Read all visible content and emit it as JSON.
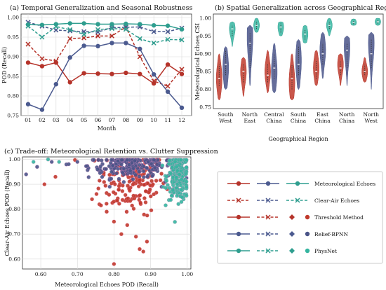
{
  "colors": {
    "threshold": "#b5332a",
    "relief": "#4b5a8f",
    "physnet": "#2f9e8f",
    "threshold_fill": "#c0392b",
    "relief_fill": "#4a5488",
    "physnet_fill": "#35b5a0",
    "grid": "#d9d9d9"
  },
  "legend": {
    "rows": [
      {
        "label": "Meteorological Echoes",
        "kind": "met"
      },
      {
        "label": "Clear-Air Echoes",
        "kind": "clear"
      },
      {
        "label": "Threshold Method",
        "kind": "threshold"
      },
      {
        "label": "Relief-BPNN",
        "kind": "relief"
      },
      {
        "label": "PhysNet",
        "kind": "physnet"
      }
    ]
  },
  "chart_data": [
    {
      "type": "line",
      "title": "(a) Temporal Generalization and Seasonal Robustness",
      "xlabel": "Month",
      "ylabel": "POD (Recall)",
      "categories": [
        "01",
        "02",
        "03",
        "04",
        "05",
        "06",
        "07",
        "08",
        "09",
        "10",
        "11",
        "12"
      ],
      "ylim": [
        0.75,
        1.0
      ],
      "yticks": [
        "0.75",
        "0.80",
        "0.85",
        "0.90",
        "0.95",
        "1.00"
      ],
      "grid": true,
      "series": [
        {
          "method": "threshold",
          "echo": "met",
          "values": [
            0.885,
            0.876,
            0.885,
            0.835,
            0.858,
            0.857,
            0.856,
            0.859,
            0.856,
            0.832,
            0.88,
            0.856
          ]
        },
        {
          "method": "threshold",
          "echo": "clear",
          "values": [
            0.932,
            0.895,
            0.889,
            0.946,
            0.948,
            0.953,
            0.953,
            0.976,
            0.9,
            0.838,
            0.825,
            0.868
          ]
        },
        {
          "method": "relief",
          "echo": "met",
          "values": [
            0.779,
            0.765,
            0.83,
            0.898,
            0.928,
            0.927,
            0.935,
            0.935,
            0.92,
            0.855,
            0.811,
            0.77
          ]
        },
        {
          "method": "relief",
          "echo": "clear",
          "values": [
            0.988,
            0.978,
            0.968,
            0.966,
            0.964,
            0.963,
            0.974,
            0.975,
            0.976,
            0.964,
            0.964,
            0.973
          ]
        },
        {
          "method": "physnet",
          "echo": "met",
          "values": [
            0.982,
            0.981,
            0.983,
            0.985,
            0.985,
            0.983,
            0.983,
            0.984,
            0.983,
            0.98,
            0.979,
            0.97
          ]
        },
        {
          "method": "physnet",
          "echo": "clear",
          "values": [
            0.978,
            0.95,
            0.977,
            0.969,
            0.957,
            0.969,
            0.972,
            0.97,
            0.946,
            0.935,
            0.944,
            0.943
          ]
        }
      ]
    },
    {
      "type": "violin",
      "title": "(b) Spatial Generalization across Geographical Regions",
      "xlabel": "Geographical Region",
      "ylabel": "Meteorological Echoes CSI",
      "categories": [
        "South West",
        "North East",
        "Central China",
        "South China",
        "East China",
        "North China",
        "North West"
      ],
      "ylim": [
        0.75,
        1.0
      ],
      "yticks": [
        "0.75",
        "0.80",
        "0.85",
        "0.90",
        "0.95",
        "1.00"
      ],
      "series": [
        {
          "method": "threshold",
          "stats": [
            {
              "min": 0.77,
              "q1": 0.81,
              "median": 0.83,
              "q3": 0.87,
              "max": 0.9,
              "mode": 0.83
            },
            {
              "min": 0.78,
              "q1": 0.82,
              "median": 0.85,
              "q3": 0.87,
              "max": 0.89,
              "mode": 0.85
            },
            {
              "min": 0.79,
              "q1": 0.82,
              "median": 0.84,
              "q3": 0.87,
              "max": 0.91,
              "mode": 0.85
            },
            {
              "min": 0.77,
              "q1": 0.8,
              "median": 0.83,
              "q3": 0.87,
              "max": 0.9,
              "mode": 0.82
            },
            {
              "min": 0.81,
              "q1": 0.83,
              "median": 0.85,
              "q3": 0.88,
              "max": 0.91,
              "mode": 0.86
            },
            {
              "min": 0.81,
              "q1": 0.84,
              "median": 0.86,
              "q3": 0.88,
              "max": 0.9,
              "mode": 0.87
            },
            {
              "min": 0.82,
              "q1": 0.84,
              "median": 0.85,
              "q3": 0.87,
              "max": 0.89,
              "mode": 0.85
            }
          ]
        },
        {
          "method": "relief",
          "stats": [
            {
              "min": 0.8,
              "q1": 0.84,
              "median": 0.87,
              "q3": 0.91,
              "max": 0.92,
              "mode": 0.86
            },
            {
              "min": 0.81,
              "q1": 0.86,
              "median": 0.93,
              "q3": 0.96,
              "max": 0.98,
              "mode": 0.95
            },
            {
              "min": 0.79,
              "q1": 0.83,
              "median": 0.86,
              "q3": 0.9,
              "max": 0.93,
              "mode": 0.85
            },
            {
              "min": 0.8,
              "q1": 0.84,
              "median": 0.87,
              "q3": 0.92,
              "max": 0.94,
              "mode": 0.88
            },
            {
              "min": 0.83,
              "q1": 0.87,
              "median": 0.9,
              "q3": 0.93,
              "max": 0.96,
              "mode": 0.91
            },
            {
              "min": 0.81,
              "q1": 0.86,
              "median": 0.91,
              "q3": 0.93,
              "max": 0.95,
              "mode": 0.92
            },
            {
              "min": 0.8,
              "q1": 0.86,
              "median": 0.9,
              "q3": 0.94,
              "max": 0.96,
              "mode": 0.93
            }
          ]
        },
        {
          "method": "physnet",
          "stats": [
            {
              "min": 0.92,
              "q1": 0.95,
              "median": 0.97,
              "q3": 0.98,
              "max": 0.99,
              "mode": 0.97
            },
            {
              "min": 0.96,
              "q1": 0.97,
              "median": 0.98,
              "q3": 0.99,
              "max": 1.0,
              "mode": 0.98
            },
            {
              "min": 0.95,
              "q1": 0.96,
              "median": 0.975,
              "q3": 0.985,
              "max": 0.99,
              "mode": 0.975
            },
            {
              "min": 0.93,
              "q1": 0.94,
              "median": 0.955,
              "q3": 0.97,
              "max": 0.98,
              "mode": 0.955
            },
            {
              "min": 0.95,
              "q1": 0.97,
              "median": 0.98,
              "q3": 0.99,
              "max": 1.0,
              "mode": 0.98
            },
            {
              "min": 0.98,
              "q1": 0.983,
              "median": 0.988,
              "q3": 0.993,
              "max": 0.998,
              "mode": 0.988
            },
            {
              "min": 0.98,
              "q1": 0.985,
              "median": 0.99,
              "q3": 0.995,
              "max": 1.0,
              "mode": 0.99
            }
          ]
        }
      ]
    },
    {
      "type": "scatter",
      "title": "(c) Trade-off: Meteorological Retention vs. Clutter Suppression",
      "xlabel": "Meteorological Echoes POD (Recall)",
      "ylabel": "Clear-Air Echoes POD (Recall)",
      "xlim": [
        0.55,
        1.01
      ],
      "ylim": [
        0.56,
        1.01
      ],
      "xticks": [
        "0.60",
        "0.70",
        "0.80",
        "0.90",
        "1.00"
      ],
      "yticks": [
        "0.60",
        "0.70",
        "0.80",
        "0.90",
        "1.00"
      ],
      "grid": true,
      "series": [
        {
          "method": "threshold",
          "center": [
            0.85,
            0.92
          ],
          "spread": [
            0.045,
            0.07
          ],
          "count": 180,
          "points": [
            [
              0.8,
              0.58
            ],
            [
              0.78,
              0.79
            ],
            [
              0.8,
              0.75
            ],
            [
              0.87,
              0.64
            ],
            [
              0.88,
              0.63
            ],
            [
              0.76,
              0.82
            ],
            [
              0.74,
              0.84
            ],
            [
              0.61,
              0.9
            ],
            [
              0.64,
              0.93
            ],
            [
              0.89,
              0.67
            ],
            [
              0.82,
              0.7
            ],
            [
              0.86,
              0.69
            ]
          ]
        },
        {
          "method": "relief",
          "center": [
            0.85,
            0.975
          ],
          "spread": [
            0.06,
            0.025
          ],
          "count": 220,
          "points": [
            [
              0.56,
              0.94
            ],
            [
              0.59,
              0.97
            ],
            [
              0.63,
              0.99
            ],
            [
              0.67,
              0.98
            ],
            [
              0.7,
              0.99
            ],
            [
              0.93,
              0.89
            ],
            [
              0.94,
              0.91
            ],
            [
              0.96,
              0.88
            ]
          ]
        },
        {
          "method": "physnet",
          "center": [
            0.975,
            0.93
          ],
          "spread": [
            0.015,
            0.045
          ],
          "count": 220,
          "points": [
            [
              0.58,
              0.99
            ],
            [
              0.62,
              1.0
            ],
            [
              0.65,
              0.99
            ],
            [
              0.99,
              0.84
            ],
            [
              0.98,
              0.86
            ]
          ]
        }
      ]
    }
  ]
}
